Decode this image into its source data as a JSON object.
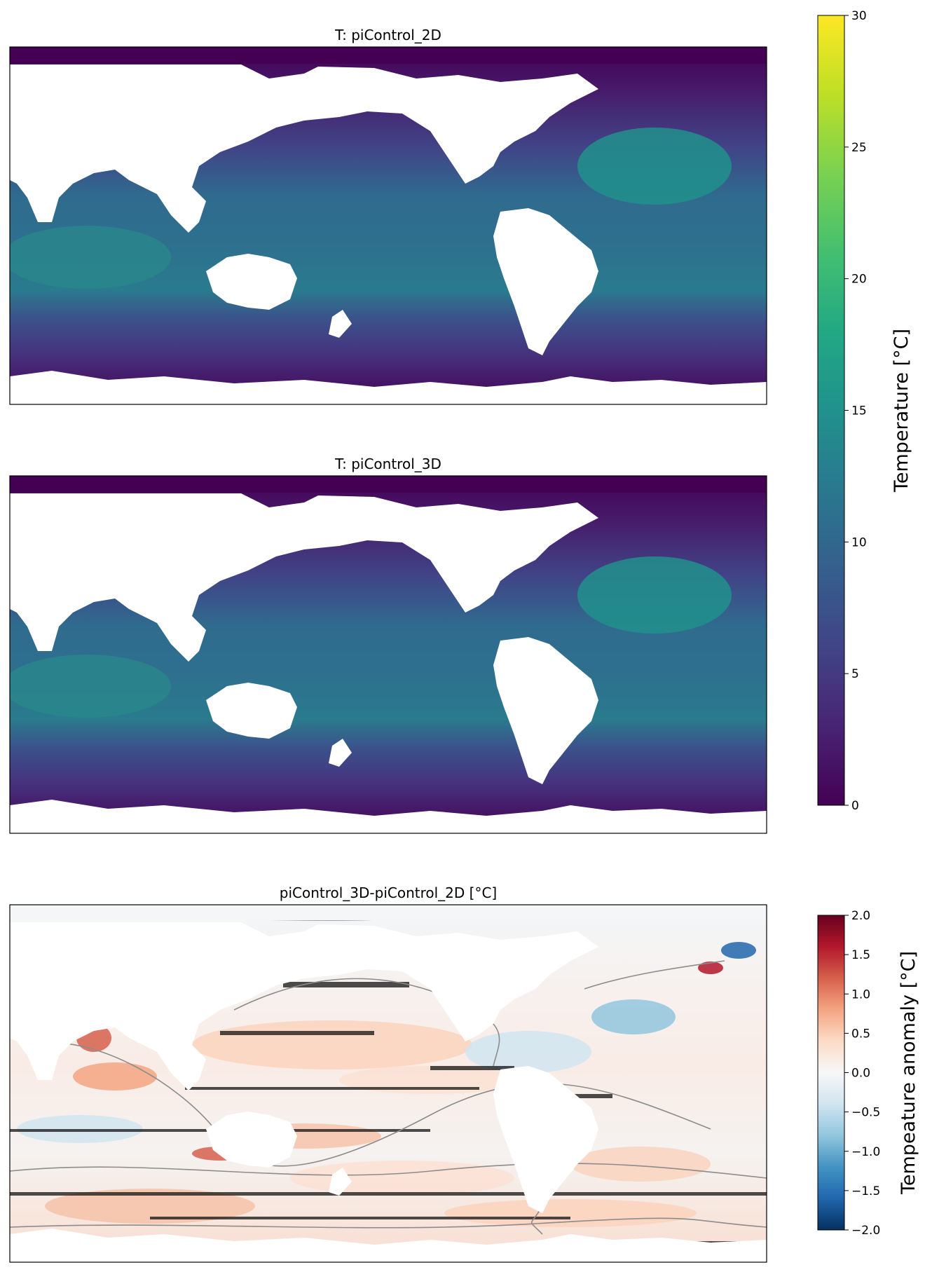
{
  "chart_data": [
    {
      "type": "heatmap",
      "title": "T: piControl_2D",
      "variable": "Temperature",
      "colormap": "viridis",
      "vmin": 0,
      "vmax": 30,
      "colorbar_label": "Temperature [°C]",
      "colorbar_ticks": [
        0,
        5,
        10,
        15,
        20,
        25,
        30
      ]
    },
    {
      "type": "heatmap",
      "title": "T: piControl_3D",
      "variable": "Temperature",
      "colormap": "viridis",
      "vmin": 0,
      "vmax": 30
    },
    {
      "type": "heatmap",
      "title": "piControl_3D-piControl_2D [°C]",
      "variable": "Temperature anomaly",
      "colormap": "RdBu_r",
      "vmin": -2.0,
      "vmax": 2.0,
      "colorbar_label": "Tempeature anomaly [°C]",
      "colorbar_ticks": [
        2.0,
        1.5,
        1.0,
        0.5,
        0.0,
        -0.5,
        -1.0,
        -1.5,
        -2.0
      ],
      "colorbar_tick_labels": [
        "2.0",
        "1.5",
        "1.0",
        "0.5",
        "0.0",
        "−0.5",
        "−1.0",
        "−1.5",
        "−2.0"
      ]
    }
  ]
}
